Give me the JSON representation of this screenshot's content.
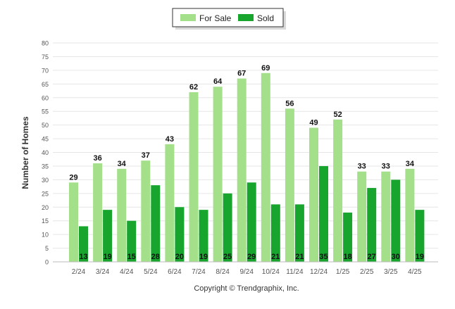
{
  "legend": {
    "for_sale_label": "For Sale",
    "sold_label": "Sold"
  },
  "copyright": "Copyright © Trendgraphix, Inc.",
  "colors": {
    "for_sale": "#a4e08a",
    "sold": "#17a52e",
    "grid": "#e6e6e6",
    "axis_text": "#555555"
  },
  "chart_data": {
    "type": "bar",
    "categories": [
      "2/24",
      "3/24",
      "4/24",
      "5/24",
      "6/24",
      "7/24",
      "8/24",
      "9/24",
      "10/24",
      "11/24",
      "12/24",
      "1/25",
      "2/25",
      "3/25",
      "4/25"
    ],
    "series": [
      {
        "name": "For Sale",
        "values": [
          29,
          36,
          34,
          37,
          43,
          62,
          64,
          67,
          69,
          56,
          49,
          52,
          33,
          33,
          34
        ]
      },
      {
        "name": "Sold",
        "values": [
          13,
          19,
          15,
          28,
          20,
          19,
          25,
          29,
          21,
          21,
          35,
          18,
          27,
          30,
          19
        ]
      }
    ],
    "title": "",
    "xlabel": "",
    "ylabel": "Number of Homes",
    "ylim": [
      0,
      80
    ],
    "yticks": [
      0,
      5,
      10,
      15,
      20,
      25,
      30,
      35,
      40,
      45,
      50,
      55,
      60,
      65,
      70,
      75,
      80
    ],
    "grid": true,
    "legend_position": "top-center"
  }
}
